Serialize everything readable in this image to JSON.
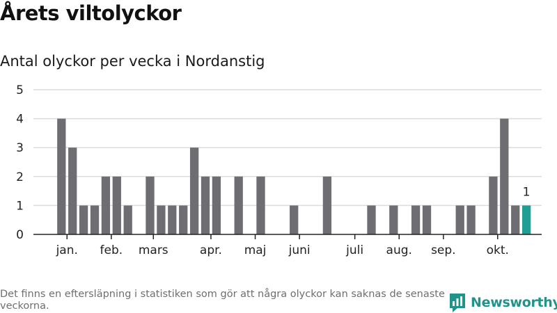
{
  "title": "Årets viltolyckor",
  "subtitle": "Antal olyckor per vecka i Nordanstig",
  "footnote": "Det finns en eftersläpning i statistiken som gör att några olyckor kan saknas de senaste veckorna.",
  "brand": {
    "name": "Newsworthy",
    "icon": "newsworthy-logo-icon"
  },
  "colors": {
    "bar": "#6e6d72",
    "highlight": "#1e9e94",
    "grid": "#dcdcdc",
    "axis": "#222222",
    "text": "#222222",
    "brand": "#21938a"
  },
  "chart_data": {
    "type": "bar",
    "title": "Antal olyckor per vecka i Nordanstig",
    "xlabel": "",
    "ylabel": "",
    "ylim": [
      0,
      5
    ],
    "yticks": [
      "0",
      "1",
      "2",
      "3",
      "4",
      "5"
    ],
    "weeks": [
      1,
      2,
      3,
      4,
      5,
      6,
      7,
      8,
      9,
      10,
      11,
      12,
      13,
      14,
      15,
      16,
      17,
      18,
      19,
      20,
      21,
      22,
      23,
      24,
      25,
      26,
      27,
      28,
      29,
      30,
      31,
      32,
      33,
      34,
      35,
      36,
      37,
      38,
      39,
      40,
      41,
      42,
      43,
      44,
      45
    ],
    "values": [
      0,
      0,
      4,
      3,
      1,
      1,
      2,
      2,
      1,
      0,
      2,
      1,
      1,
      1,
      3,
      2,
      2,
      0,
      2,
      0,
      2,
      0,
      0,
      1,
      0,
      0,
      2,
      0,
      0,
      0,
      1,
      0,
      1,
      0,
      1,
      1,
      0,
      0,
      1,
      1,
      0,
      2,
      4,
      1,
      1
    ],
    "highlight_week": 45,
    "highlight_label": "1",
    "month_labels": [
      {
        "label": "jan.",
        "week": 3.5
      },
      {
        "label": "feb.",
        "week": 7.5
      },
      {
        "label": "mars",
        "week": 11.3
      },
      {
        "label": "apr.",
        "week": 16.5
      },
      {
        "label": "maj",
        "week": 20.5
      },
      {
        "label": "juni",
        "week": 24.5
      },
      {
        "label": "juli",
        "week": 29.5
      },
      {
        "label": "aug.",
        "week": 33.5
      },
      {
        "label": "sep.",
        "week": 37.5
      },
      {
        "label": "okt.",
        "week": 42.4
      }
    ]
  }
}
